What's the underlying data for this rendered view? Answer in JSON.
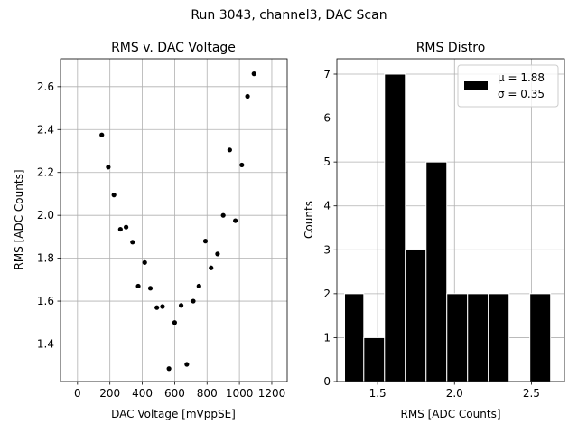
{
  "suptitle": "Run 3043, channel3, DAC Scan",
  "chart_data": [
    {
      "type": "scatter",
      "title": "RMS v. DAC Voltage",
      "xlabel": "DAC Voltage [mVppSE]",
      "ylabel": "RMS [ADC Counts]",
      "xlim": [
        -105,
        1295
      ],
      "ylim": [
        1.225,
        2.73
      ],
      "xticks": [
        0,
        200,
        400,
        600,
        800,
        1000,
        1200
      ],
      "yticks": [
        1.4,
        1.6,
        1.8,
        2.0,
        2.2,
        2.4,
        2.6
      ],
      "ytick_labels": [
        "1.4",
        "1.6",
        "1.8",
        "2.0",
        "2.2",
        "2.4",
        "2.6"
      ],
      "grid": true,
      "marker_color": "#000000",
      "points": [
        {
          "x": 150,
          "y": 2.375
        },
        {
          "x": 190,
          "y": 2.225
        },
        {
          "x": 225,
          "y": 2.095
        },
        {
          "x": 265,
          "y": 1.935
        },
        {
          "x": 300,
          "y": 1.945
        },
        {
          "x": 340,
          "y": 1.875
        },
        {
          "x": 375,
          "y": 1.67
        },
        {
          "x": 415,
          "y": 1.78
        },
        {
          "x": 450,
          "y": 1.66
        },
        {
          "x": 490,
          "y": 1.57
        },
        {
          "x": 525,
          "y": 1.575
        },
        {
          "x": 565,
          "y": 1.285
        },
        {
          "x": 600,
          "y": 1.5
        },
        {
          "x": 640,
          "y": 1.58
        },
        {
          "x": 675,
          "y": 1.305
        },
        {
          "x": 715,
          "y": 1.6
        },
        {
          "x": 750,
          "y": 1.67
        },
        {
          "x": 790,
          "y": 1.88
        },
        {
          "x": 825,
          "y": 1.755
        },
        {
          "x": 865,
          "y": 1.82
        },
        {
          "x": 900,
          "y": 2.0
        },
        {
          "x": 940,
          "y": 2.305
        },
        {
          "x": 975,
          "y": 1.975
        },
        {
          "x": 1015,
          "y": 2.235
        },
        {
          "x": 1050,
          "y": 2.555
        },
        {
          "x": 1090,
          "y": 2.66
        }
      ]
    },
    {
      "type": "bar",
      "subtype": "histogram",
      "title": "RMS Distro",
      "xlabel": "RMS [ADC Counts]",
      "ylabel": "Counts",
      "xlim": [
        1.235,
        2.715
      ],
      "ylim": [
        0,
        7.35
      ],
      "xticks": [
        1.5,
        2.0,
        2.5
      ],
      "xtick_labels": [
        "1.5",
        "2.0",
        "2.5"
      ],
      "yticks": [
        0,
        1,
        2,
        3,
        4,
        5,
        6,
        7
      ],
      "grid": true,
      "bar_color": "#000000",
      "bins": [
        {
          "left": 1.285,
          "right": 1.41,
          "count": 2
        },
        {
          "left": 1.41,
          "right": 1.545,
          "count": 1
        },
        {
          "left": 1.545,
          "right": 1.68,
          "count": 7
        },
        {
          "left": 1.68,
          "right": 1.815,
          "count": 3
        },
        {
          "left": 1.815,
          "right": 1.95,
          "count": 5
        },
        {
          "left": 1.95,
          "right": 2.085,
          "count": 2
        },
        {
          "left": 2.085,
          "right": 2.22,
          "count": 2
        },
        {
          "left": 2.22,
          "right": 2.355,
          "count": 2
        },
        {
          "left": 2.355,
          "right": 2.49,
          "count": 0
        },
        {
          "left": 2.49,
          "right": 2.625,
          "count": 2
        }
      ],
      "legend": {
        "placement": "upper right",
        "line1": "μ = 1.88",
        "line2": "σ = 0.35"
      }
    }
  ]
}
